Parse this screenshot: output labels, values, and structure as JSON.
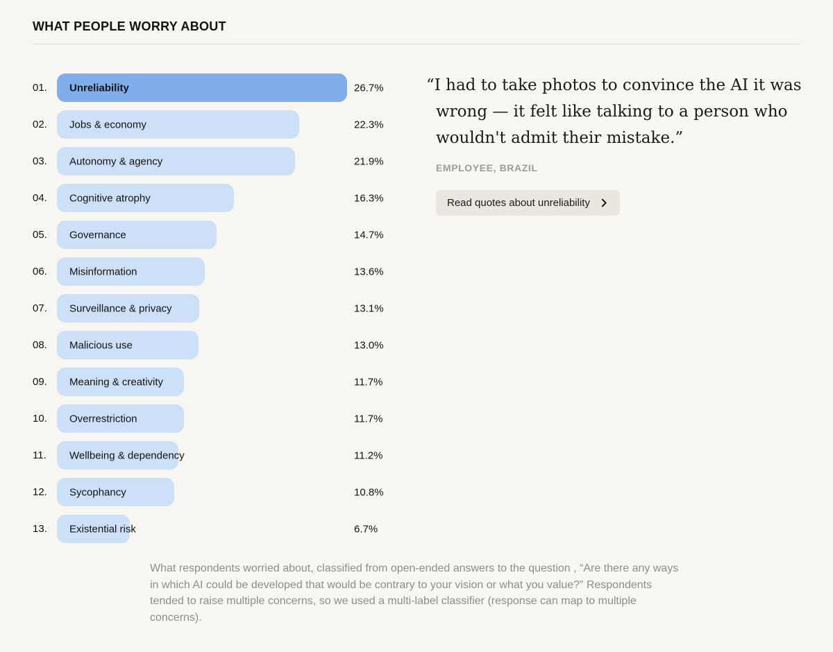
{
  "colors": {
    "background": "#f8f6f0",
    "selected_bar": "#80aeeb",
    "bar": "#cce0f8",
    "button_bg": "#e9e7e0",
    "divider": "#dcd9d0",
    "footnote_text": "#8e8e88"
  },
  "header": {
    "title": "WHAT PEOPLE WORRY ABOUT"
  },
  "chart_data": {
    "type": "bar",
    "orientation": "horizontal",
    "categories": [
      "Unreliability",
      "Jobs & economy",
      "Autonomy & agency",
      "Cognitive atrophy",
      "Governance",
      "Misinformation",
      "Surveillance & privacy",
      "Malicious use",
      "Meaning & creativity",
      "Overrestriction",
      "Wellbeing & dependency",
      "Sycophancy",
      "Existential risk"
    ],
    "values": [
      26.7,
      22.3,
      21.9,
      16.3,
      14.7,
      13.6,
      13.1,
      13.0,
      11.7,
      11.7,
      11.2,
      10.8,
      6.7
    ],
    "ranks": [
      "01.",
      "02.",
      "03.",
      "04.",
      "05.",
      "06.",
      "07.",
      "08.",
      "09.",
      "10.",
      "11.",
      "12.",
      "13."
    ],
    "value_suffix": "%",
    "selected_index": 0,
    "xlim": [
      0,
      26.7
    ],
    "grid": false,
    "legend": false,
    "title": "WHAT PEOPLE WORRY ABOUT"
  },
  "quote": {
    "text": "“I had to take photos to convince the AI it was wrong — it felt like talking to a person who wouldn't admit their mistake.”",
    "attribution": "EMPLOYEE, BRAZIL",
    "button_label": "Read quotes about unreliability",
    "button_icon": "chevron-right-icon"
  },
  "footnote": {
    "text": "What respondents worried about, classified from open-ended answers to the question , “Are there any ways in which AI could be developed that would be contrary to your vision or what you value?” Respondents tended to raise multiple concerns, so we used a multi-label classifier (response can map to multiple concerns)."
  }
}
